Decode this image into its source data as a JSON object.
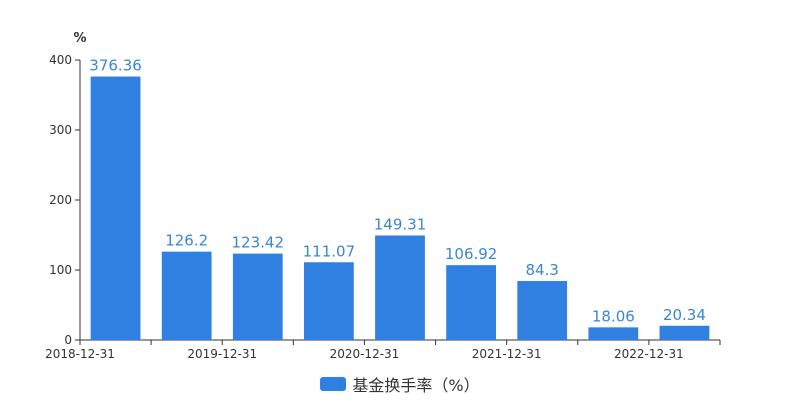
{
  "chart_data": {
    "type": "bar",
    "title": "",
    "xlabel": "",
    "ylabel": "%",
    "ylim": [
      0,
      400
    ],
    "yticks": [
      0,
      100,
      200,
      300,
      400
    ],
    "grid": false,
    "legend_position": "bottom",
    "categories": [
      "2018-12-31",
      "",
      "2019-12-31",
      "",
      "2020-12-31",
      "",
      "2021-12-31",
      "",
      "2022-12-31"
    ],
    "series": [
      {
        "name": "基金换手率（%）",
        "values": [
          376.36,
          126.2,
          123.42,
          111.07,
          149.31,
          106.92,
          84.3,
          18.06,
          20.34
        ],
        "labels": [
          "376.36",
          "126.2",
          "123.42",
          "111.07",
          "149.31",
          "106.92",
          "84.3",
          "18.06",
          "20.34"
        ],
        "color": "#2f80e0"
      }
    ],
    "colors": {
      "bar": "#2f80e0",
      "label": "#3a86d6",
      "axis": "#333333",
      "text": "#333333"
    }
  }
}
